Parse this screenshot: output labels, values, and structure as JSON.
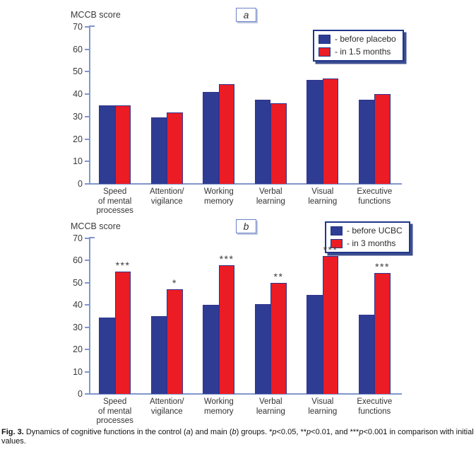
{
  "colors": {
    "bar_blue": "#2e3d93",
    "bar_red": "#ec1c24",
    "bar_border": "#33348e",
    "axis": "#8296cc",
    "legend_border": "#20368c",
    "text": "#333333"
  },
  "caption": {
    "segments": [
      {
        "text": "Fig. 3.",
        "bold": true
      },
      {
        "text": " Dynamics of cognitive functions in the control ("
      },
      {
        "text": "a",
        "italic": true
      },
      {
        "text": ") and main ("
      },
      {
        "text": "b",
        "italic": true
      },
      {
        "text": ") groups. *"
      },
      {
        "text": "p",
        "italic": true
      },
      {
        "text": "<0.05, **"
      },
      {
        "text": "p",
        "italic": true
      },
      {
        "text": "<0.01, and ***"
      },
      {
        "text": "p",
        "italic": true
      },
      {
        "text": "<0.001 in comparison with initial values."
      }
    ]
  },
  "chart_data": [
    {
      "type": "bar",
      "panel": "a",
      "axis_title": "MCCB score",
      "ylim": [
        0,
        70
      ],
      "ytick_step": 10,
      "grid": false,
      "legend_position": "top-right",
      "categories": [
        [
          "Speed",
          "of mental",
          "processes"
        ],
        [
          "Attention/",
          "vigilance"
        ],
        [
          "Working",
          "memory"
        ],
        [
          "Verbal",
          "learning"
        ],
        [
          "Visual",
          "learning"
        ],
        [
          "Executive",
          "functions"
        ]
      ],
      "series": [
        {
          "name": "- before placebo",
          "color_key": "bar_blue",
          "values": [
            35,
            29.5,
            41,
            37.5,
            46.5,
            37.5
          ]
        },
        {
          "name": "- in 1.5 months",
          "color_key": "bar_red",
          "values": [
            35,
            32,
            44.5,
            36,
            47,
            40
          ]
        }
      ],
      "significance": [
        "",
        "",
        "",
        "",
        "",
        ""
      ]
    },
    {
      "type": "bar",
      "panel": "b",
      "axis_title": "MCCB score",
      "ylim": [
        0,
        70
      ],
      "ytick_step": 10,
      "grid": false,
      "legend_position": "top-right",
      "categories": [
        [
          "Speed",
          "of mental",
          "processes"
        ],
        [
          "Attention/",
          "vigilance"
        ],
        [
          "Working",
          "memory"
        ],
        [
          "Verbal",
          "learning"
        ],
        [
          "Visual",
          "learning"
        ],
        [
          "Executive",
          "functions"
        ]
      ],
      "series": [
        {
          "name": "- before UCBC",
          "color_key": "bar_blue",
          "values": [
            34.5,
            35,
            40,
            40.5,
            44.5,
            35.5
          ]
        },
        {
          "name": "- in 3 months",
          "color_key": "bar_red",
          "values": [
            55,
            47,
            58,
            50,
            62,
            54.5
          ]
        }
      ],
      "significance": [
        "***",
        "*",
        "***",
        "**",
        "***",
        "***"
      ]
    }
  ]
}
